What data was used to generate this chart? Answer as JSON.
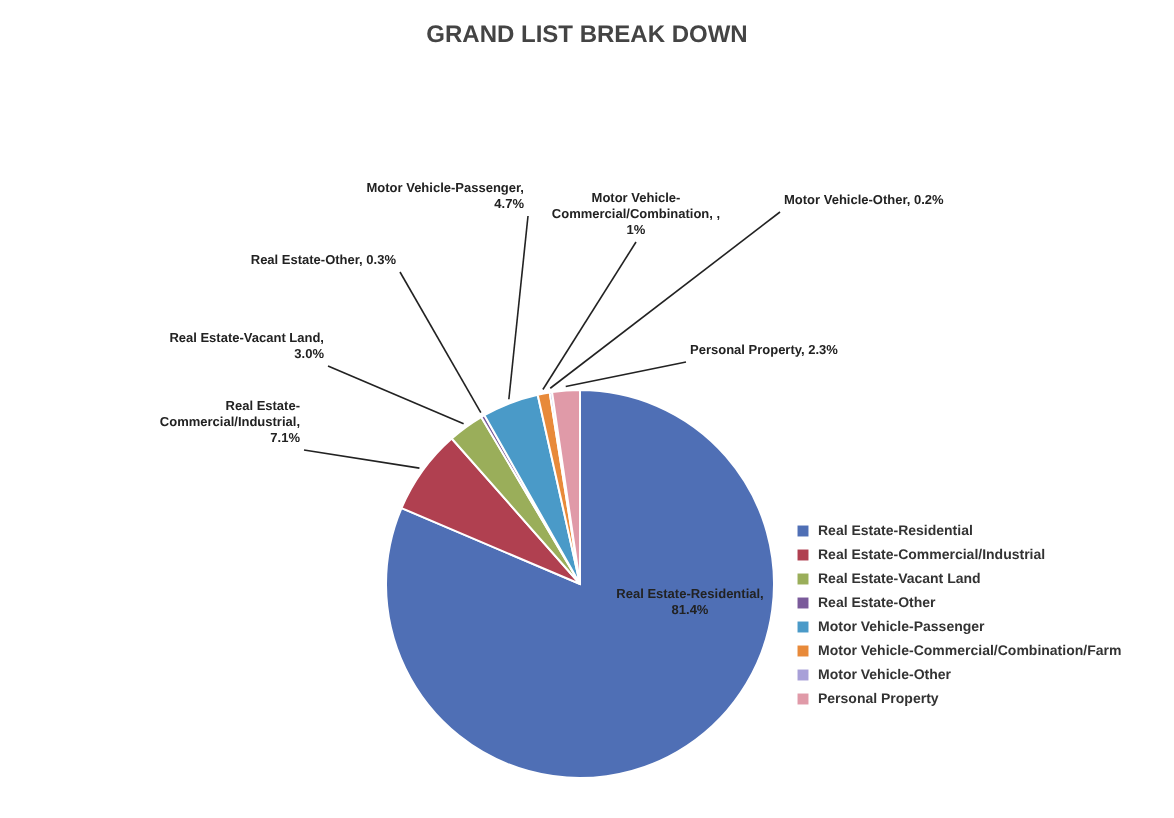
{
  "chart_data": {
    "type": "pie",
    "title": "GRAND LIST BREAK DOWN",
    "categories": [
      "Real Estate-Residential",
      "Real Estate-Commercial/Industrial",
      "Real Estate-Vacant Land",
      "Real Estate-Other",
      "Motor Vehicle-Passenger",
      "Motor Vehicle-Commercial/Combination/Farm",
      "Motor Vehicle-Other",
      "Personal Property"
    ],
    "values": [
      81.4,
      7.1,
      3.0,
      0.3,
      4.7,
      1,
      0.2,
      2.3
    ],
    "colors": [
      "#4f6fb5",
      "#b04050",
      "#9aae5a",
      "#7a5a9a",
      "#4a9ac8",
      "#e88a3a",
      "#a8a0d8",
      "#e09aa8"
    ],
    "value_labels": [
      "Real Estate-Residential, 81.4%",
      "Real Estate-Commercial/Industrial, 7.1%",
      "Real Estate-Vacant Land, 3.0%",
      "Real Estate-Other, 0.3%",
      "Motor Vehicle-Passenger, 4.7%",
      "Motor Vehicle-Commercial/Combination, , 1%",
      "Motor Vehicle-Other, 0.2%",
      "Personal Property, 2.3%"
    ],
    "legend": "right"
  }
}
